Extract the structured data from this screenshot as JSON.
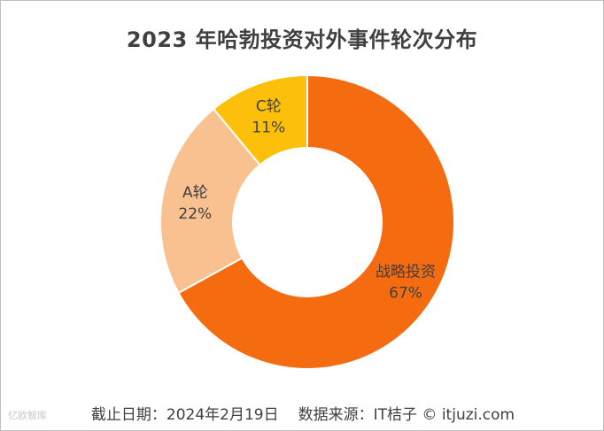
{
  "chart_data": {
    "type": "pie",
    "variant": "donut",
    "title": "2023 年哈勃投资对外事件轮次分布",
    "slices": [
      {
        "label": "战略投资",
        "value": 67,
        "percent_label": "67%",
        "color": "#f56b0f"
      },
      {
        "label": "A轮",
        "value": 22,
        "percent_label": "22%",
        "color": "#f9c090"
      },
      {
        "label": "C轮",
        "value": 11,
        "percent_label": "11%",
        "color": "#fcc00a"
      }
    ]
  },
  "footer": {
    "cutoff": "截止日期：2024年2月19日",
    "source": "数据来源：IT桔子 © itjuzi.com"
  },
  "watermark": "亿欧智库"
}
